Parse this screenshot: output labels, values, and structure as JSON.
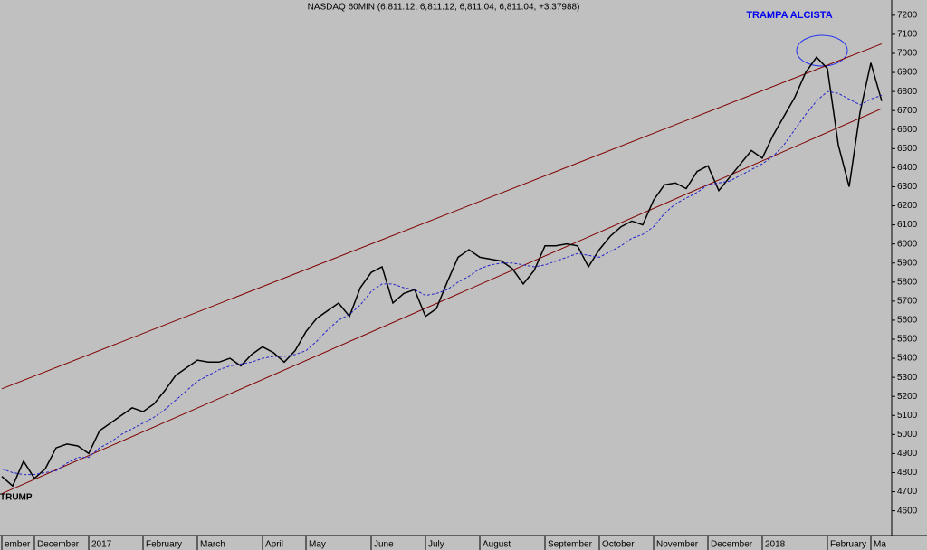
{
  "chart_data": {
    "type": "line",
    "title": "NASDAQ 60MIN (6,811.12, 6,811.12, 6,811.04, 6,811.04, +3.37988)",
    "annotations": [
      "TRAMPA ALCISTA",
      "TRUMP"
    ],
    "categories": [
      "ember",
      null,
      null,
      "December",
      null,
      null,
      null,
      null,
      "2017",
      null,
      null,
      null,
      null,
      "February",
      null,
      null,
      null,
      null,
      "March",
      null,
      null,
      null,
      null,
      null,
      "April",
      null,
      null,
      null,
      "May",
      null,
      null,
      null,
      null,
      null,
      "June",
      null,
      null,
      null,
      null,
      "July",
      null,
      null,
      null,
      null,
      "August",
      null,
      null,
      null,
      null,
      null,
      "September",
      null,
      null,
      null,
      null,
      "October",
      null,
      null,
      null,
      null,
      "November",
      null,
      null,
      null,
      null,
      "December",
      null,
      null,
      null,
      null,
      "2018",
      null,
      null,
      null,
      null,
      null,
      "February",
      null,
      null,
      null,
      "Ma",
      null
    ],
    "series": [
      {
        "name": "NASDAQ 60MIN",
        "color": "#000000",
        "values": [
          4780,
          4730,
          4860,
          4770,
          4820,
          4930,
          4950,
          4940,
          4900,
          5020,
          5060,
          5100,
          5140,
          5120,
          5160,
          5230,
          5310,
          5350,
          5390,
          5380,
          5380,
          5400,
          5360,
          5420,
          5460,
          5430,
          5380,
          5440,
          5540,
          5610,
          5650,
          5690,
          5620,
          5770,
          5850,
          5880,
          5690,
          5740,
          5760,
          5620,
          5660,
          5800,
          5930,
          5970,
          5930,
          5920,
          5910,
          5870,
          5790,
          5860,
          5990,
          5990,
          6000,
          5990,
          5880,
          5970,
          6040,
          6090,
          6120,
          6100,
          6230,
          6310,
          6320,
          6290,
          6380,
          6410,
          6280,
          6350,
          6420,
          6490,
          6450,
          6570,
          6670,
          6770,
          6900,
          6980,
          6920,
          6520,
          6300,
          6690,
          6950,
          6750
        ]
      },
      {
        "name": "MA",
        "color": "#2222cc",
        "dashed": true,
        "values": [
          4820,
          4800,
          4790,
          4790,
          4800,
          4810,
          4850,
          4880,
          4880,
          4930,
          4960,
          5000,
          5030,
          5060,
          5090,
          5130,
          5180,
          5230,
          5280,
          5310,
          5340,
          5360,
          5370,
          5380,
          5400,
          5410,
          5410,
          5420,
          5440,
          5490,
          5550,
          5600,
          5630,
          5680,
          5750,
          5790,
          5790,
          5770,
          5760,
          5730,
          5740,
          5760,
          5800,
          5830,
          5870,
          5890,
          5900,
          5900,
          5890,
          5880,
          5890,
          5910,
          5930,
          5950,
          5940,
          5930,
          5960,
          5990,
          6030,
          6050,
          6090,
          6160,
          6210,
          6240,
          6270,
          6310,
          6320,
          6330,
          6360,
          6390,
          6420,
          6460,
          6520,
          6600,
          6680,
          6750,
          6800,
          6790,
          6760,
          6730,
          6760,
          6780
        ]
      }
    ],
    "trend_lines": [
      {
        "color": "#800000",
        "x": [
          0,
          81
        ],
        "values": [
          5240,
          7050
        ]
      },
      {
        "color": "#800000",
        "x": [
          0,
          81
        ],
        "values": [
          4690,
          6710
        ]
      }
    ],
    "ylim": [
      4470,
      7280
    ],
    "yticks": [
      4600,
      4700,
      4800,
      4900,
      5000,
      5100,
      5200,
      5300,
      5400,
      5500,
      5600,
      5700,
      5800,
      5900,
      6000,
      6100,
      6200,
      6300,
      6400,
      6500,
      6600,
      6700,
      6800,
      6900,
      7000,
      7100,
      7200
    ],
    "y_axis_side": "right"
  }
}
